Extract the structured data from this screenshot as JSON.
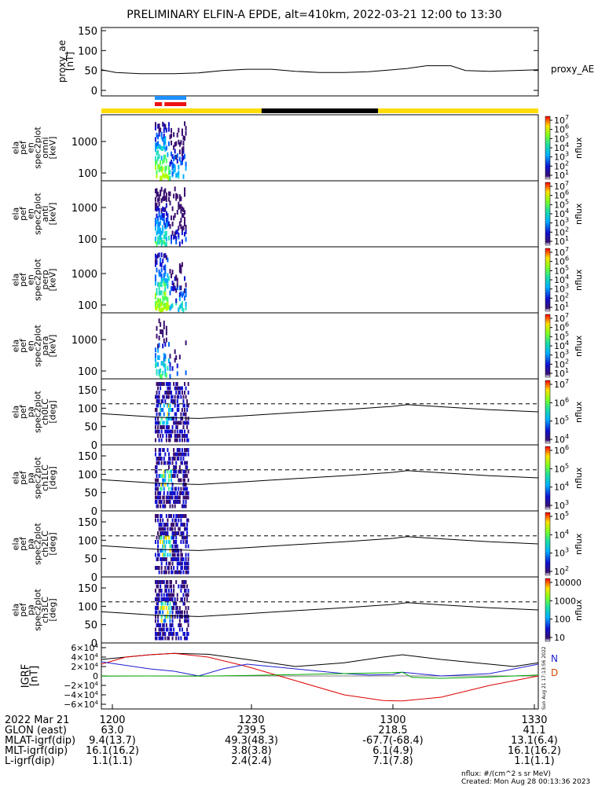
{
  "title": "PRELIMINARY ELFIN-A EPDE, alt=410km, 2022-03-21 12:00 to 13:30",
  "colors": {
    "bar_yellow": "#ffdd00",
    "bar_black": "#000000",
    "segment_blue": "#1e90ff",
    "segment_red": "#ee1111",
    "igrf_N": "#1c1cd0",
    "igrf_D": "#d04a00",
    "igrf_E": "#00aa00",
    "igrf_red": "#dd0000"
  },
  "proxy_ae": {
    "ylabel": "proxy_ae\n[nT]",
    "legend": "proxy_AE",
    "yticks": [
      "150",
      "100",
      "50",
      "0"
    ]
  },
  "panels": [
    {
      "ylabel": "ela\npef\nen\nspec2plot\nomni\n[keV]",
      "yticks": [
        "1000",
        "100"
      ],
      "cbar": {
        "labels": [
          "10",
          "10",
          "10",
          "10",
          "10",
          "10",
          "10"
        ],
        "exps": [
          "7",
          "6",
          "5",
          "4",
          "3",
          "2",
          "1"
        ],
        "title": "nflux"
      }
    },
    {
      "ylabel": "ela\npef\nen\nspec2plot\nanti\n[keV]",
      "yticks": [
        "1000",
        "100"
      ],
      "cbar": {
        "labels": [
          "10",
          "10",
          "10",
          "10",
          "10",
          "10",
          "10"
        ],
        "exps": [
          "7",
          "6",
          "5",
          "4",
          "3",
          "2",
          "1"
        ],
        "title": "nflux"
      }
    },
    {
      "ylabel": "ela\npef\nen\nspec2plot\nperp\n[keV]",
      "yticks": [
        "1000",
        "100"
      ],
      "cbar": {
        "labels": [
          "10",
          "10",
          "10",
          "10",
          "10",
          "10",
          "10"
        ],
        "exps": [
          "7",
          "6",
          "5",
          "4",
          "3",
          "2",
          "1"
        ],
        "title": "nflux"
      }
    },
    {
      "ylabel": "ela\npef\nen\nspec2plot\npara\n[keV]",
      "yticks": [
        "1000",
        "100"
      ],
      "cbar": {
        "labels": [
          "10",
          "10",
          "10",
          "10",
          "10",
          "10",
          "10"
        ],
        "exps": [
          "7",
          "6",
          "5",
          "4",
          "3",
          "2",
          "1"
        ],
        "title": "nflux"
      }
    },
    {
      "ylabel": "ela\npef\npa\nspec2plot\nch0LC\n[deg]",
      "yticks": [
        "150",
        "100",
        "50",
        "0"
      ],
      "cbar": {
        "labels": [
          "10",
          "10",
          "10",
          "10"
        ],
        "exps": [
          "7",
          "6",
          "5",
          "4"
        ],
        "title": "nflux"
      }
    },
    {
      "ylabel": "ela\npef\npa\nspec2plot\nch1LC\n[deg]",
      "yticks": [
        "150",
        "100",
        "50",
        "0"
      ],
      "cbar": {
        "labels": [
          "10",
          "10",
          "10",
          "10"
        ],
        "exps": [
          "6",
          "5",
          "4",
          "3"
        ],
        "title": "nflux"
      }
    },
    {
      "ylabel": "ela\npef\npa\nspec2plot\nch2LC\n[deg]",
      "yticks": [
        "150",
        "100",
        "50",
        "0"
      ],
      "cbar": {
        "labels": [
          "10",
          "10",
          "10",
          "10"
        ],
        "exps": [
          "5",
          "4",
          "3",
          "2"
        ],
        "title": "nflux"
      }
    },
    {
      "ylabel": "ela\npef\npa\nspec2plot\nch3LC\n[deg]",
      "yticks": [
        "150",
        "100",
        "50",
        "0"
      ],
      "cbar": {
        "labels": [
          "10000",
          "1000",
          "100",
          "10"
        ],
        "exps": [
          "",
          "",
          "",
          ""
        ],
        "title": "nflux"
      }
    }
  ],
  "igrf": {
    "ylabel": "IGRF\n[nT]",
    "yticks": [
      "6×10",
      "4×10",
      "2×10",
      "0",
      "−2×10",
      "−4×10",
      "−6×10"
    ],
    "ytick_exp": "4",
    "legend_N": "N",
    "legend_D": "D"
  },
  "timestamp_vertical": "Sun Aug 21 17:13:56 2022",
  "footer": {
    "labels": [
      "2022 Mar 21",
      "GLON (east)",
      "MLAT-igrf(dip)",
      "MLT-igrf(dip)",
      "L-igrf(dip)"
    ],
    "columns": [
      [
        "1200",
        "63.0",
        "9.4(13.7)",
        "16.1(16.2)",
        "1.1(1.1)"
      ],
      [
        "1230",
        "239.5",
        "49.3(48.3)",
        "3.8(3.8)",
        "2.4(2.4)"
      ],
      [
        "1300",
        "218.5",
        "-67.7(-68.4)",
        "6.1(4.9)",
        "7.1(7.8)"
      ],
      [
        "1330",
        "41.1",
        "13.1(6.4)",
        "16.1(16.2)",
        "1.1(1.1)"
      ]
    ],
    "units": "nflux: #/(cm^2 s sr MeV)",
    "created": "Created: Mon Aug 28 00:13:36 2023"
  },
  "chart_data": {
    "type": "line",
    "x_unit": "minutes since 12:00 UT",
    "xlim": [
      0,
      90
    ],
    "proxy_ae": {
      "ylim": [
        0,
        150
      ],
      "x": [
        0,
        3,
        8,
        15,
        20,
        25,
        30,
        35,
        40,
        45,
        50,
        55,
        60,
        63,
        67,
        72,
        75,
        80,
        85,
        90
      ],
      "y": [
        52,
        45,
        42,
        42,
        44,
        50,
        53,
        53,
        48,
        45,
        45,
        47,
        52,
        55,
        62,
        62,
        50,
        48,
        50,
        52
      ]
    },
    "orbit_bar": [
      {
        "from": 0,
        "to": 33,
        "color": "yellow"
      },
      {
        "from": 33,
        "to": 57,
        "color": "black"
      },
      {
        "from": 57,
        "to": 90,
        "color": "yellow"
      }
    ],
    "science_zone_markers": [
      {
        "color": "blue",
        "from": 11,
        "to": 17.5
      },
      {
        "color": "red",
        "from": 11,
        "to": 12.5
      },
      {
        "color": "red",
        "from": 13,
        "to": 17.5
      }
    ],
    "loss_cone_deg": {
      "ylim": [
        0,
        180
      ],
      "x": [
        0,
        12,
        20,
        30,
        40,
        50,
        60,
        63,
        70,
        80,
        90
      ],
      "y": [
        85,
        75,
        72,
        80,
        88,
        96,
        105,
        110,
        104,
        96,
        90
      ]
    },
    "anti_loss_cone_dashed_deg": 112,
    "igrf_nT": {
      "ylim": [
        -60000,
        60000
      ],
      "series": [
        {
          "color": "black",
          "x": [
            0,
            10,
            15,
            22,
            30,
            40,
            50,
            58,
            62,
            70,
            80,
            85,
            90
          ],
          "y": [
            35000,
            45000,
            48000,
            46000,
            35000,
            20000,
            28000,
            40000,
            45000,
            35000,
            25000,
            20000,
            28000
          ]
        },
        {
          "color": "red",
          "x": [
            0,
            5,
            10,
            15,
            22,
            30,
            40,
            50,
            58,
            62,
            70,
            80,
            85,
            90
          ],
          "y": [
            25000,
            40000,
            45000,
            48000,
            40000,
            20000,
            -10000,
            -40000,
            -52000,
            -53000,
            -45000,
            -20000,
            -10000,
            0
          ]
        },
        {
          "color": "blue",
          "x": [
            0,
            10,
            15,
            20,
            25,
            30,
            40,
            50,
            55,
            60,
            62,
            70,
            80,
            90
          ],
          "y": [
            30000,
            15000,
            10000,
            0,
            15000,
            25000,
            15000,
            5000,
            2000,
            3000,
            8000,
            0,
            5000,
            25000
          ]
        },
        {
          "color": "green",
          "x": [
            0,
            10,
            20,
            30,
            40,
            50,
            55,
            60,
            62,
            64,
            70,
            80,
            90
          ],
          "y": [
            -500,
            0,
            -500,
            1000,
            3000,
            5000,
            6000,
            7000,
            8000,
            -3000,
            -5000,
            -2000,
            2000
          ]
        }
      ]
    }
  }
}
